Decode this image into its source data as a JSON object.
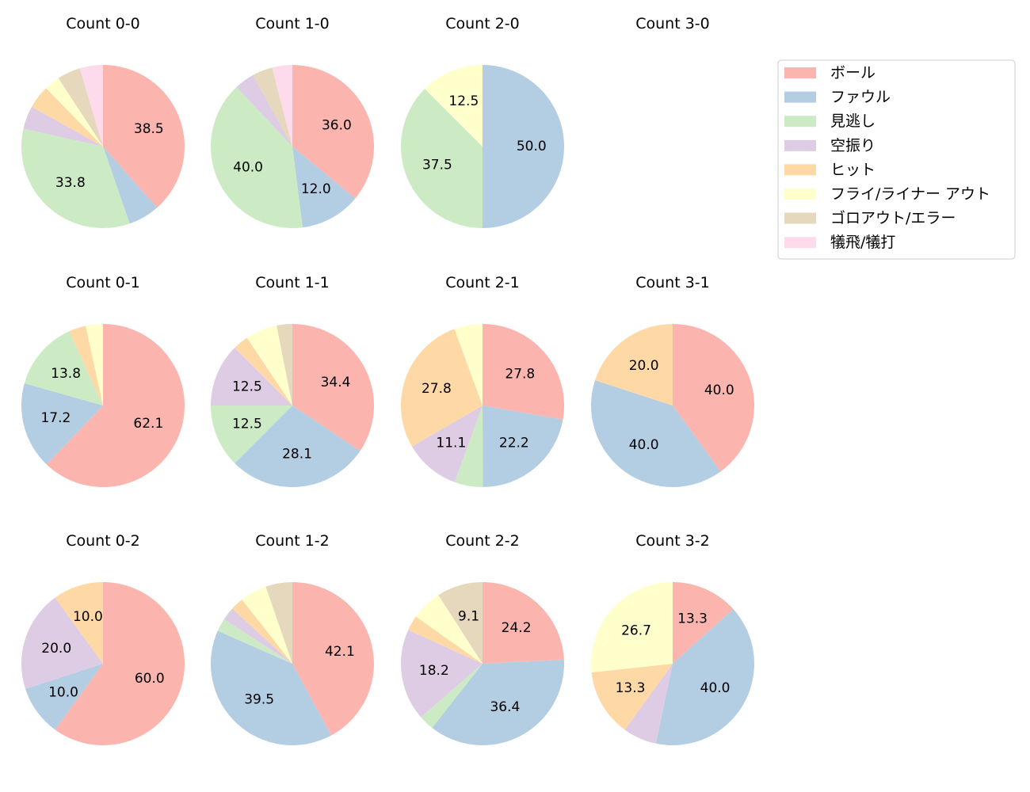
{
  "chart_data": {
    "type": "pie",
    "start_angle": 90,
    "direction": "clockwise",
    "legend": {
      "placement": "right",
      "entries": [
        "ボール",
        "ファウル",
        "見逃し",
        "空振り",
        "ヒット",
        "フライ/ライナー アウト",
        "ゴロアウト/エラー",
        "犠飛/犠打"
      ],
      "colors": [
        "#fbb4ae",
        "#b3cde3",
        "#ccebc5",
        "#decbe4",
        "#fed9a6",
        "#ffffcc",
        "#e5d8bd",
        "#fddaec"
      ]
    },
    "charts": [
      {
        "title": "Count 0-0",
        "values": [
          38.5,
          6.2,
          33.8,
          4.6,
          4.6,
          3.1,
          4.6,
          4.6
        ]
      },
      {
        "title": "Count 1-0",
        "values": [
          36.0,
          12.0,
          40.0,
          4.0,
          0,
          0,
          4.0,
          4.0
        ]
      },
      {
        "title": "Count 2-0",
        "values": [
          0,
          50.0,
          37.5,
          0,
          0,
          12.5,
          0,
          0
        ]
      },
      {
        "title": "Count 3-0",
        "values": []
      },
      {
        "title": "Count 0-1",
        "values": [
          62.1,
          17.2,
          13.8,
          0,
          3.4,
          3.4,
          0,
          0
        ]
      },
      {
        "title": "Count 1-1",
        "values": [
          34.4,
          28.1,
          12.5,
          12.5,
          3.1,
          6.3,
          3.1,
          0
        ]
      },
      {
        "title": "Count 2-1",
        "values": [
          27.8,
          22.2,
          5.6,
          11.1,
          27.8,
          5.6,
          0,
          0
        ]
      },
      {
        "title": "Count 3-1",
        "values": [
          40.0,
          40.0,
          0,
          0,
          20.0,
          0,
          0,
          0
        ]
      },
      {
        "title": "Count 0-2",
        "values": [
          60.0,
          10.0,
          0,
          20.0,
          10.0,
          0,
          0,
          0
        ]
      },
      {
        "title": "Count 1-2",
        "values": [
          42.1,
          39.5,
          2.6,
          2.6,
          2.6,
          5.3,
          5.3,
          0
        ]
      },
      {
        "title": "Count 2-2",
        "values": [
          24.2,
          36.4,
          3.0,
          18.2,
          3.0,
          6.1,
          9.1,
          0
        ]
      },
      {
        "title": "Count 3-2",
        "values": [
          13.3,
          40.0,
          0,
          6.7,
          13.3,
          26.7,
          0,
          0
        ]
      }
    ]
  }
}
